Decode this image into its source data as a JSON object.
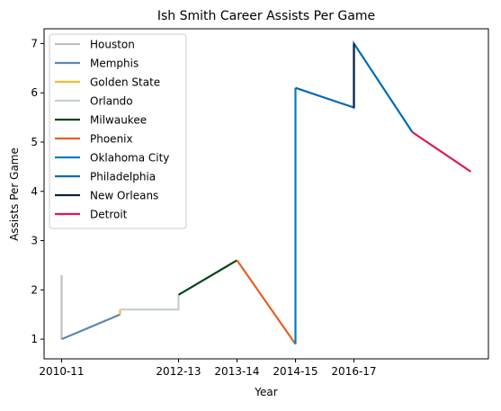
{
  "chart_data": {
    "type": "line",
    "title": "Ish Smith Career Assists Per Game",
    "xlabel": "Year",
    "ylabel": "Assists Per Game",
    "x_ticks": [
      {
        "value": 0,
        "label": "2010-11"
      },
      {
        "value": 2,
        "label": "2012-13"
      },
      {
        "value": 3,
        "label": "2013-14"
      },
      {
        "value": 4,
        "label": "2014-15"
      },
      {
        "value": 5,
        "label": "2016-17"
      }
    ],
    "y_ticks": [
      1,
      2,
      3,
      4,
      5,
      6,
      7
    ],
    "xlim": [
      -0.3,
      7.3
    ],
    "ylim": [
      0.6,
      7.3
    ],
    "legend_position": "top-left",
    "series": [
      {
        "name": "Houston",
        "color": "#bfbfbf",
        "points": [
          [
            0,
            2.3
          ],
          [
            0,
            1.0
          ]
        ]
      },
      {
        "name": "Memphis",
        "color": "#5d86b5",
        "points": [
          [
            0,
            1.0
          ],
          [
            1,
            1.5
          ]
        ]
      },
      {
        "name": "Golden State",
        "color": "#fdb927",
        "points": [
          [
            1,
            1.5
          ],
          [
            1,
            1.6
          ]
        ]
      },
      {
        "name": "Orlando",
        "color": "#c4ced4",
        "points": [
          [
            1,
            1.6
          ],
          [
            2,
            1.6
          ],
          [
            2,
            1.9
          ]
        ]
      },
      {
        "name": "Milwaukee",
        "color": "#00471b",
        "points": [
          [
            2,
            1.9
          ],
          [
            3,
            2.6
          ]
        ]
      },
      {
        "name": "Phoenix",
        "color": "#e56020",
        "points": [
          [
            3,
            2.6
          ],
          [
            4,
            0.9
          ]
        ]
      },
      {
        "name": "Oklahoma City",
        "color": "#007ac1",
        "points": [
          [
            4,
            0.9
          ],
          [
            4,
            6.1
          ]
        ]
      },
      {
        "name": "Philadelphia",
        "color": "#006bb6",
        "points": [
          [
            4,
            6.1
          ],
          [
            5,
            5.7
          ],
          [
            5,
            7.0
          ],
          [
            6,
            5.2
          ]
        ]
      },
      {
        "name": "New Orleans",
        "color": "#0c2340",
        "points": [
          [
            5,
            5.7
          ],
          [
            5,
            7.0
          ]
        ]
      },
      {
        "name": "Detroit",
        "color": "#e0174f",
        "points": [
          [
            6,
            5.2
          ],
          [
            7,
            4.4
          ]
        ]
      }
    ]
  }
}
